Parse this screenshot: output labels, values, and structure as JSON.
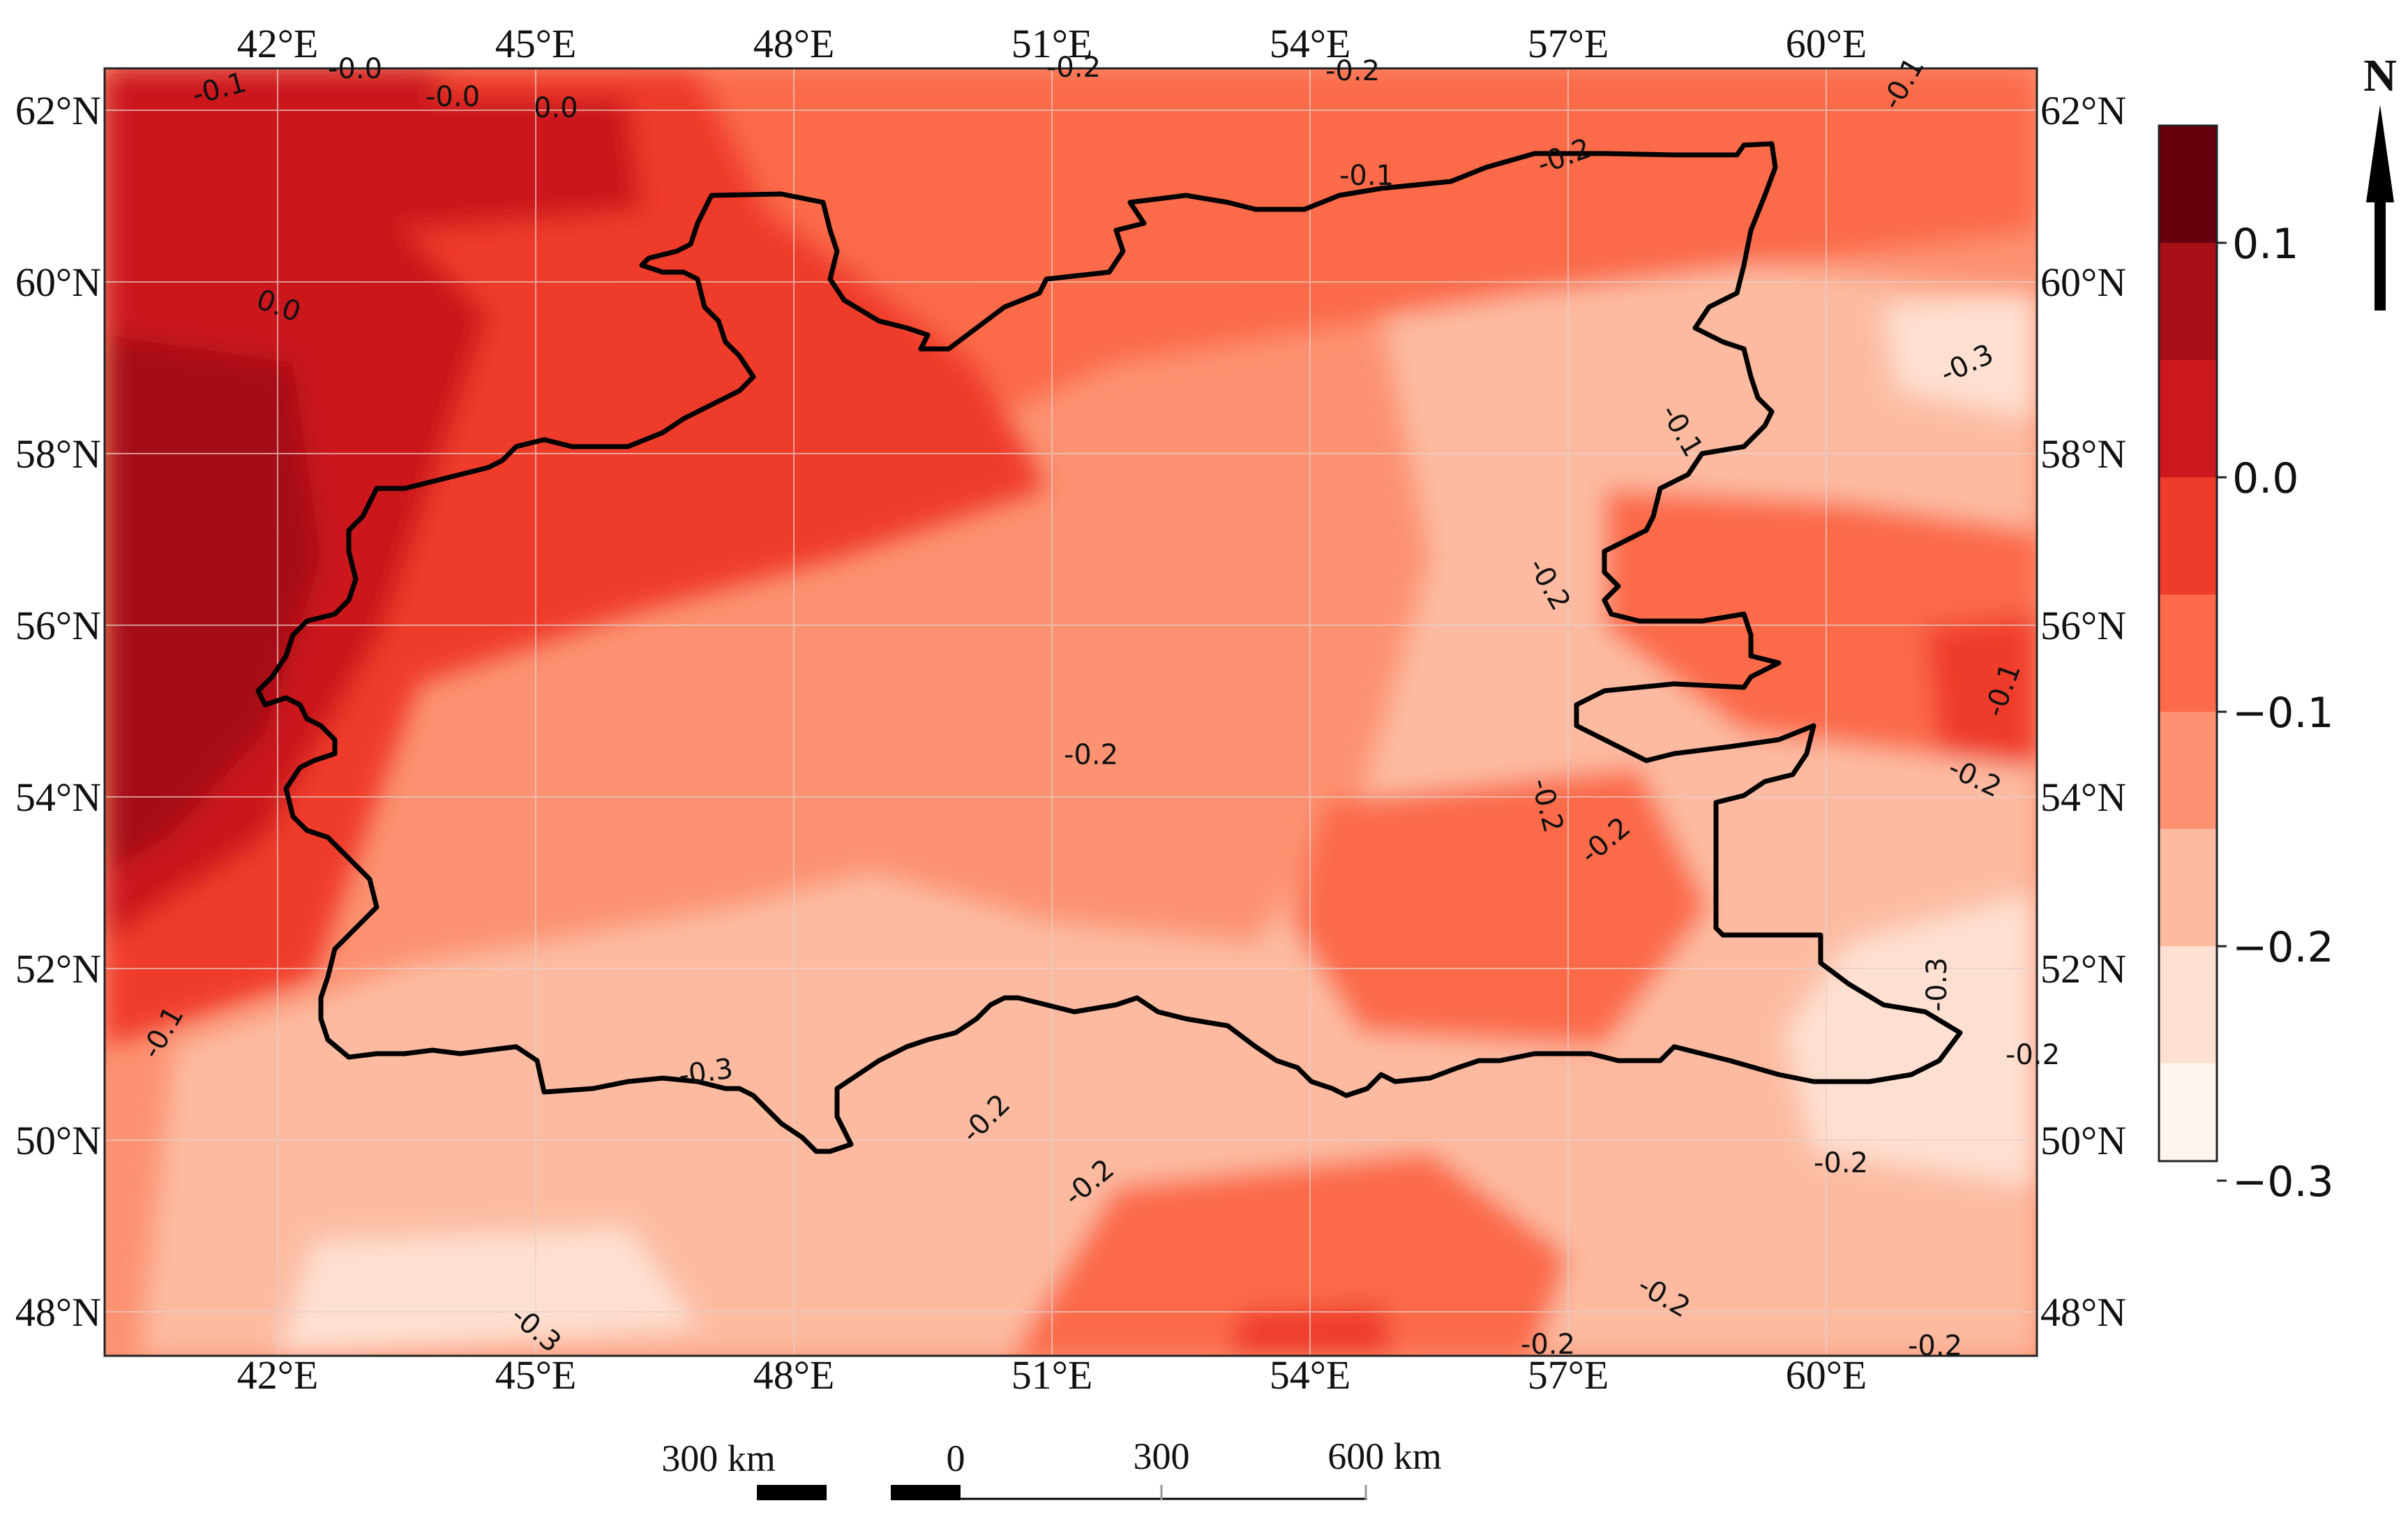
{
  "map": {
    "lon_labels": [
      "42°E",
      "45°E",
      "48°E",
      "51°E",
      "54°E",
      "57°E",
      "60°E"
    ],
    "lat_labels": [
      "62°N",
      "60°N",
      "58°N",
      "56°N",
      "54°N",
      "52°N",
      "50°N",
      "48°N"
    ],
    "colors": {
      "c1": "#fee0d2",
      "c2": "#fcbba1",
      "c3": "#fc9272",
      "c4": "#fb6a4a",
      "c5": "#ef3b2c",
      "c6": "#cb181d",
      "c7": "#a50f15",
      "c8": "#67000d",
      "c0": "#fff5f0"
    }
  },
  "colorbar": {
    "tick_labels": [
      "0.1",
      "0.0",
      "−0.1",
      "−0.2",
      "−0.3"
    ]
  },
  "contour_labels": [
    "-0.1",
    "-0.0",
    "-0.0",
    "0.0",
    "-0.2",
    "-0.2",
    "-0.1",
    "0.0",
    "-0.1",
    "-0.2",
    "-0.3",
    "-0.1",
    "-0.2",
    "-0.2",
    "-0.1",
    "-0.2",
    "-0.2",
    "-0.3",
    "-0.2",
    "-0.2",
    "-0.3",
    "-0.2",
    "-0.2",
    "-0.3",
    "-0.2",
    "-0.1",
    "-0.2",
    "-0.2",
    "-0.2"
  ],
  "scale_bar": {
    "labels": [
      "300 km",
      "0",
      "300",
      "600 km"
    ]
  },
  "north_arrow": {
    "label": "N"
  }
}
